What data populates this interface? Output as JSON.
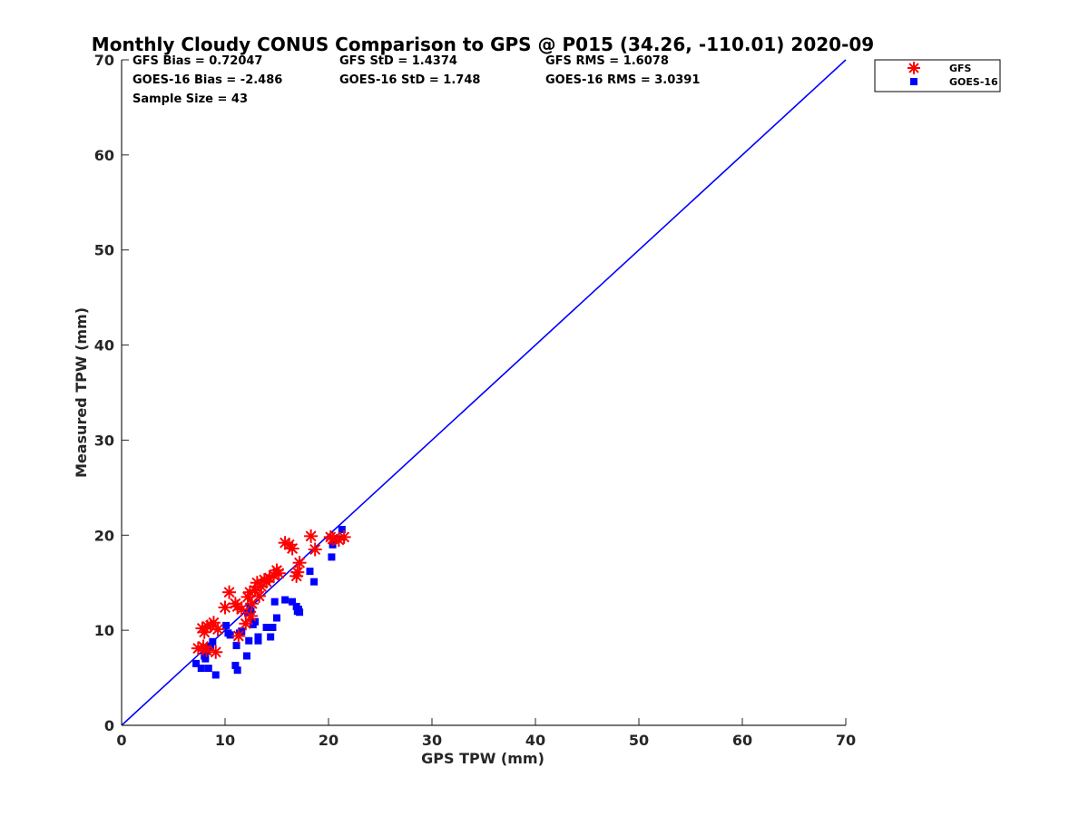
{
  "chart_data": {
    "type": "scatter",
    "title": "Monthly Cloudy CONUS Comparison to GPS @ P015 (34.26, -110.01) 2020-09",
    "xlabel": "GPS TPW (mm)",
    "ylabel": "Measured TPW (mm)",
    "xlim": [
      0,
      70
    ],
    "ylim": [
      0,
      70
    ],
    "xticks": [
      0,
      10,
      20,
      30,
      40,
      50,
      60,
      70
    ],
    "yticks": [
      0,
      10,
      20,
      30,
      40,
      50,
      60,
      70
    ],
    "xtick_labels": [
      "0",
      "10",
      "20",
      "30",
      "40",
      "50",
      "60",
      "70"
    ],
    "ytick_labels": [
      "0",
      "10",
      "20",
      "30",
      "40",
      "50",
      "60",
      "70"
    ],
    "grid": false,
    "legend_position": "outside top-right",
    "stats": {
      "gfs_bias": "GFS Bias = 0.72047",
      "gfs_std": "GFS StD = 1.4374",
      "gfs_rms": "GFS RMS = 1.6078",
      "goes_bias": "GOES-16 Bias = -2.486",
      "goes_std": "GOES-16 StD = 1.748",
      "goes_rms": "GOES-16 RMS = 3.0391",
      "sample_size": "Sample Size = 43"
    },
    "reference_line": {
      "name": "1:1",
      "color": "#0000ff",
      "x": [
        0,
        70
      ],
      "y": [
        0,
        70
      ]
    },
    "series": [
      {
        "name": "GFS",
        "marker": "asterisk",
        "color": "#ff0000",
        "points": [
          [
            7.4,
            8.1
          ],
          [
            7.8,
            10.2
          ],
          [
            8.0,
            9.8
          ],
          [
            8.3,
            10.4
          ],
          [
            8.6,
            10.5
          ],
          [
            8.9,
            10.8
          ],
          [
            8.2,
            7.9
          ],
          [
            9.1,
            7.7
          ],
          [
            10.0,
            12.4
          ],
          [
            10.4,
            14.0
          ],
          [
            11.0,
            12.8
          ],
          [
            11.2,
            12.5
          ],
          [
            11.3,
            9.4
          ],
          [
            12.0,
            10.7
          ],
          [
            12.2,
            13.5
          ],
          [
            12.4,
            14.0
          ],
          [
            12.6,
            12.8
          ],
          [
            12.9,
            14.2
          ],
          [
            13.1,
            15.0
          ],
          [
            13.3,
            13.6
          ],
          [
            13.5,
            14.6
          ],
          [
            14.0,
            15.1
          ],
          [
            14.3,
            15.5
          ],
          [
            14.7,
            15.8
          ],
          [
            15.0,
            16.3
          ],
          [
            15.8,
            19.2
          ],
          [
            16.5,
            18.6
          ],
          [
            16.9,
            15.7
          ],
          [
            17.0,
            16.1
          ],
          [
            17.2,
            17.1
          ],
          [
            18.3,
            19.9
          ],
          [
            18.7,
            18.5
          ],
          [
            20.4,
            19.6
          ],
          [
            21.0,
            19.5
          ],
          [
            21.5,
            19.8
          ],
          [
            11.6,
            12.2
          ],
          [
            12.5,
            11.5
          ],
          [
            13.8,
            15.3
          ],
          [
            7.9,
            8.3
          ],
          [
            9.3,
            10.1
          ],
          [
            15.2,
            16.0
          ],
          [
            16.2,
            19.0
          ],
          [
            20.2,
            19.8
          ]
        ]
      },
      {
        "name": "GOES-16",
        "marker": "square",
        "color": "#0000ff",
        "points": [
          [
            7.2,
            6.5
          ],
          [
            7.7,
            6.0
          ],
          [
            8.0,
            7.3
          ],
          [
            8.2,
            7.8
          ],
          [
            8.4,
            6.0
          ],
          [
            8.6,
            8.3
          ],
          [
            8.8,
            8.8
          ],
          [
            9.1,
            5.3
          ],
          [
            10.1,
            10.5
          ],
          [
            10.5,
            9.5
          ],
          [
            11.0,
            6.3
          ],
          [
            11.2,
            5.8
          ],
          [
            11.1,
            8.4
          ],
          [
            11.4,
            9.7
          ],
          [
            12.1,
            7.3
          ],
          [
            12.3,
            8.9
          ],
          [
            12.2,
            11.8
          ],
          [
            12.4,
            12.5
          ],
          [
            12.7,
            10.6
          ],
          [
            12.9,
            10.9
          ],
          [
            13.2,
            8.9
          ],
          [
            13.2,
            9.3
          ],
          [
            14.0,
            10.3
          ],
          [
            14.4,
            9.3
          ],
          [
            14.6,
            10.3
          ],
          [
            14.8,
            13.0
          ],
          [
            15.0,
            11.3
          ],
          [
            15.8,
            13.2
          ],
          [
            16.5,
            13.0
          ],
          [
            17.0,
            12.0
          ],
          [
            17.1,
            12.2
          ],
          [
            17.2,
            11.9
          ],
          [
            18.2,
            16.2
          ],
          [
            18.6,
            15.1
          ],
          [
            20.3,
            17.7
          ],
          [
            20.4,
            19.0
          ],
          [
            20.9,
            19.6
          ],
          [
            21.3,
            20.6
          ],
          [
            10.3,
            9.7
          ],
          [
            11.6,
            9.9
          ],
          [
            12.5,
            12.0
          ],
          [
            16.9,
            12.5
          ],
          [
            8.1,
            7.0
          ]
        ]
      }
    ]
  }
}
